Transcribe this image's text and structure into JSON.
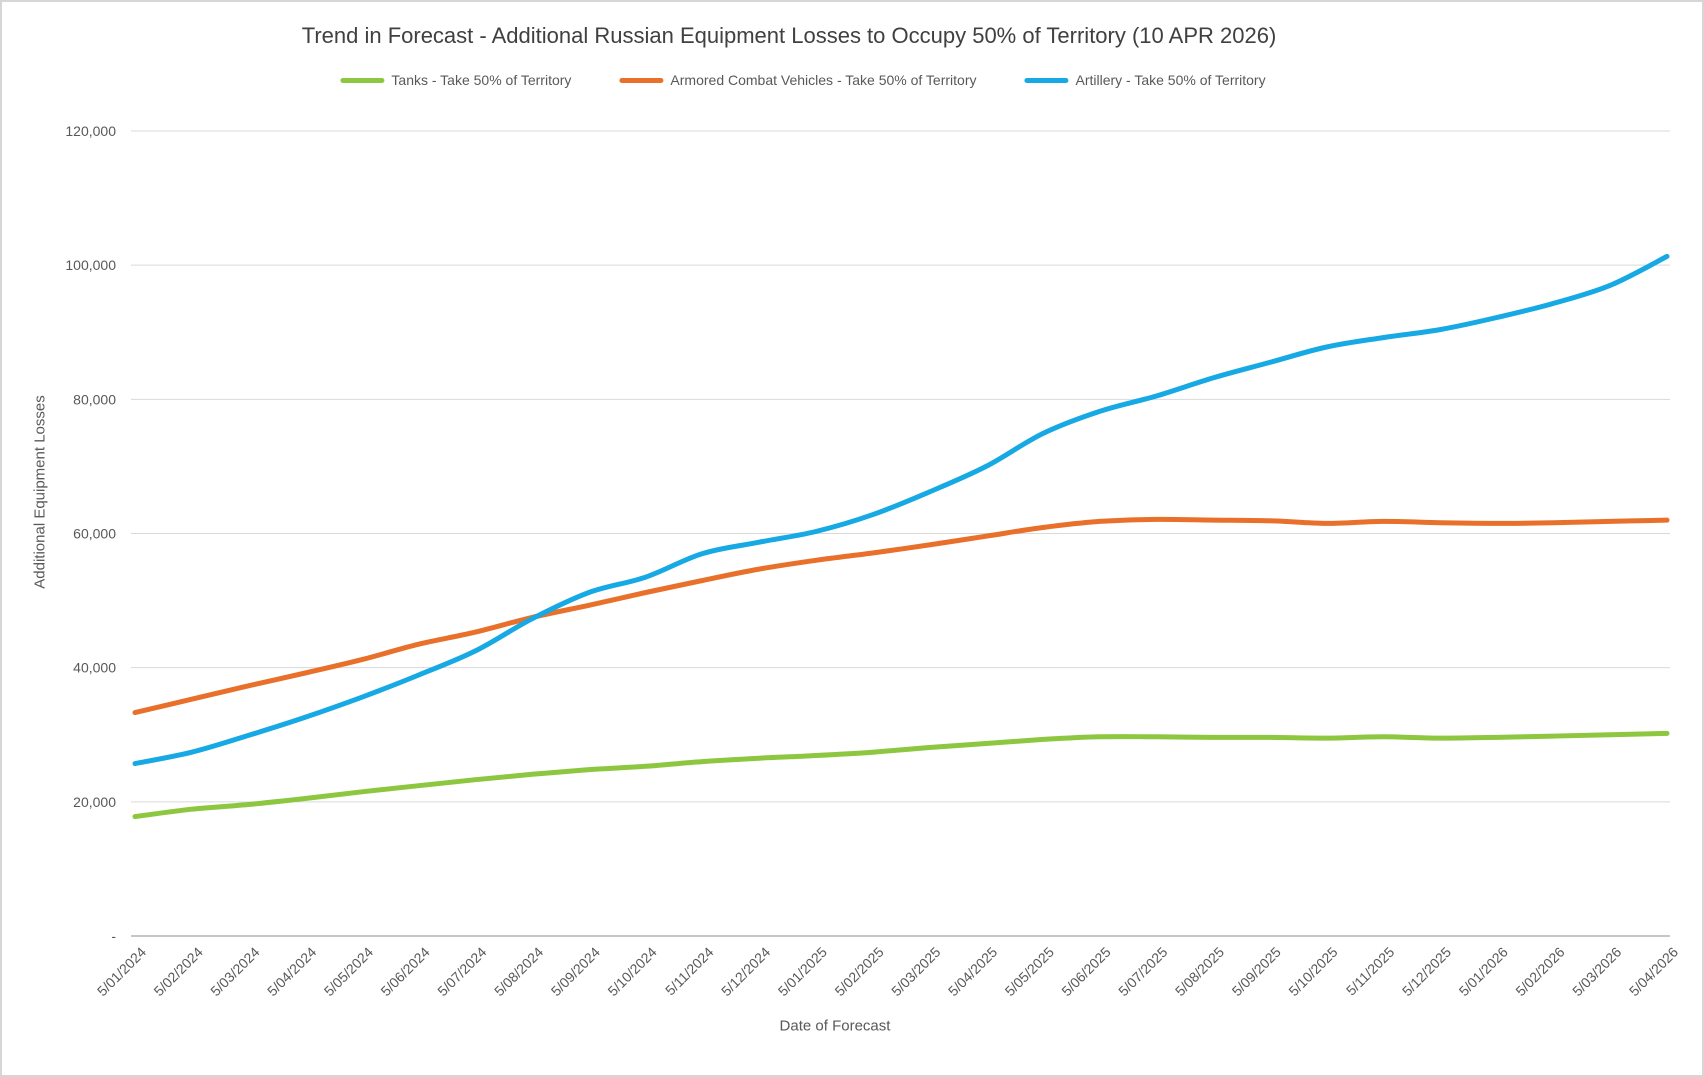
{
  "styles": {
    "grid_color": "#d9d9d9",
    "axis_line_color": "#c6c6c6",
    "tick_label_color": "#595959",
    "title_color": "#404040"
  },
  "chart_data": {
    "type": "line",
    "title": "Trend in Forecast - Additional Russian Equipment Losses to Occupy 50% of Territory (10 APR 2026)",
    "x_axis_title": "Date of Forecast",
    "y_axis_title": "Additional Equipment Losses",
    "legend_position": "top",
    "grid": "horizontal",
    "ylim": [
      0,
      120000
    ],
    "y_ticks": [
      {
        "v": 0,
        "label": "-"
      },
      {
        "v": 20000,
        "label": "20,000"
      },
      {
        "v": 40000,
        "label": "40,000"
      },
      {
        "v": 60000,
        "label": "60,000"
      },
      {
        "v": 80000,
        "label": "80,000"
      },
      {
        "v": 100000,
        "label": "100,000"
      },
      {
        "v": 120000,
        "label": "120,000"
      }
    ],
    "x": [
      "5/01/2024",
      "5/02/2024",
      "5/03/2024",
      "5/04/2024",
      "5/05/2024",
      "5/06/2024",
      "5/07/2024",
      "5/08/2024",
      "5/09/2024",
      "5/10/2024",
      "5/11/2024",
      "5/12/2024",
      "5/01/2025",
      "5/02/2025",
      "5/03/2025",
      "5/04/2025",
      "5/05/2025",
      "5/06/2025",
      "5/07/2025",
      "5/08/2025",
      "5/09/2025",
      "5/10/2025",
      "5/11/2025",
      "5/12/2025",
      "5/01/2026",
      "5/02/2026",
      "5/03/2026",
      "5/04/2026"
    ],
    "series": [
      {
        "name": "Tanks - Take 50% of Territory",
        "color": "#8dc63f",
        "values": [
          17800,
          18900,
          19600,
          20500,
          21500,
          22400,
          23300,
          24100,
          24800,
          25300,
          26000,
          26500,
          26900,
          27400,
          28100,
          28700,
          29300,
          29700,
          29700,
          29600,
          29600,
          29500,
          29700,
          29500,
          29600,
          29800,
          30000,
          30200
        ]
      },
      {
        "name": "Armored Combat Vehicles - Take 50% of Territory",
        "color": "#e8702a",
        "values": [
          33300,
          35300,
          37300,
          39200,
          41200,
          43500,
          45300,
          47500,
          49300,
          51200,
          53000,
          54700,
          56000,
          57100,
          58300,
          59600,
          60900,
          61800,
          62100,
          62000,
          61900,
          61500,
          61800,
          61600,
          61500,
          61600,
          61800,
          62000
        ]
      },
      {
        "name": "Artillery - Take 50% of Territory",
        "color": "#16a9e4",
        "values": [
          25700,
          27400,
          29900,
          32600,
          35600,
          38900,
          42500,
          47300,
          51200,
          53500,
          57000,
          58700,
          60300,
          62800,
          66200,
          70000,
          74900,
          78200,
          80500,
          83200,
          85500,
          87800,
          89200,
          90400,
          92200,
          94300,
          97000,
          101300
        ]
      }
    ]
  }
}
